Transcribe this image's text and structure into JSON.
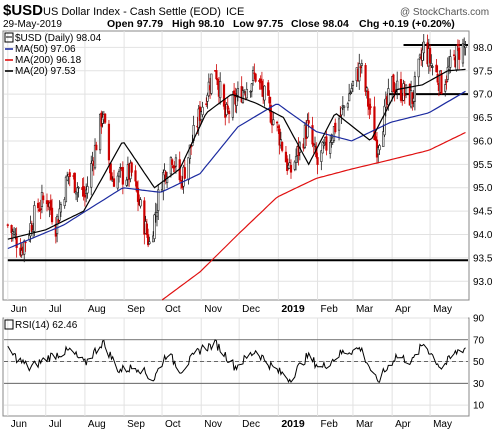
{
  "header": {
    "symbol": "$USD",
    "title": "US Dollar Index - Cash Settle (EOD)",
    "exchange": "ICE",
    "credit": "@ StockCharts.com",
    "date": "29-May-2019",
    "open": "Open 97.79",
    "high": "High 98.10",
    "low": "Low 97.75",
    "close": "Close 98.04",
    "chg": "Chg +0.19 (+0.20%)"
  },
  "legend": {
    "main": "$USD (Daily) 98.04",
    "ma50": "MA(50) 97.06",
    "ma200": "MA(200) 96.18",
    "ma20": "MA(20) 97.53",
    "rsi": "RSI(14) 62.46"
  },
  "colors": {
    "up": "#1a1a1a",
    "down": "#cc0000",
    "ma50": "#1c2ba0",
    "ma200": "#e01010",
    "ma20": "#000000",
    "grid": "#e2e2e2"
  },
  "chart_data": [
    {
      "type": "candlestick",
      "title": "$USD US Dollar Index - Cash Settle (EOD) ICE",
      "ylim": [
        92.6,
        98.35
      ],
      "y_ticks": [
        "98.0",
        "97.5",
        "97.0",
        "96.5",
        "96.0",
        "95.5",
        "95.0",
        "94.5",
        "94.0",
        "93.5",
        "93.0"
      ],
      "x_ticks": [
        "Jun",
        "Jul",
        "Aug",
        "Sep",
        "Oct",
        "Nov",
        "Dec",
        "2019",
        "Feb",
        "Mar",
        "Apr",
        "May"
      ],
      "close_anchors": [
        [
          "2018-06-01",
          94.2
        ],
        [
          "2018-06-12",
          93.7
        ],
        [
          "2018-06-25",
          94.6
        ],
        [
          "2018-07-02",
          94.8
        ],
        [
          "2018-07-09",
          94.2
        ],
        [
          "2018-07-19",
          95.3
        ],
        [
          "2018-08-01",
          94.8
        ],
        [
          "2018-08-15",
          96.6
        ],
        [
          "2018-08-22",
          95.2
        ],
        [
          "2018-09-07",
          95.3
        ],
        [
          "2018-09-21",
          93.8
        ],
        [
          "2018-10-01",
          95.2
        ],
        [
          "2018-10-09",
          95.7
        ],
        [
          "2018-10-16",
          95.1
        ],
        [
          "2018-11-01",
          96.7
        ],
        [
          "2018-11-12",
          97.6
        ],
        [
          "2018-11-20",
          96.5
        ],
        [
          "2018-12-01",
          97.0
        ],
        [
          "2018-12-14",
          97.4
        ],
        [
          "2019-01-01",
          96.2
        ],
        [
          "2019-01-10",
          95.3
        ],
        [
          "2019-01-24",
          96.3
        ],
        [
          "2019-02-01",
          95.5
        ],
        [
          "2019-02-20",
          96.6
        ],
        [
          "2019-03-07",
          97.6
        ],
        [
          "2019-03-20",
          95.9
        ],
        [
          "2019-04-01",
          97.2
        ],
        [
          "2019-04-17",
          96.9
        ],
        [
          "2019-04-26",
          98.0
        ],
        [
          "2019-05-10",
          97.2
        ],
        [
          "2019-05-23",
          97.9
        ],
        [
          "2019-05-29",
          98.04
        ]
      ],
      "overlays": [
        {
          "name": "MA(50) 97.06",
          "values": [
            [
              "2018-06-01",
              93.7
            ],
            [
              "2018-07-15",
              94.2
            ],
            [
              "2018-08-31",
              95.0
            ],
            [
              "2018-09-30",
              94.9
            ],
            [
              "2018-10-31",
              95.3
            ],
            [
              "2018-11-30",
              96.3
            ],
            [
              "2018-12-31",
              96.8
            ],
            [
              "2019-01-31",
              96.2
            ],
            [
              "2019-02-28",
              96.0
            ],
            [
              "2019-03-31",
              96.4
            ],
            [
              "2019-04-30",
              96.6
            ],
            [
              "2019-05-29",
              97.06
            ]
          ]
        },
        {
          "name": "MA(200) 96.18",
          "values": [
            [
              "2018-10-01",
              92.6
            ],
            [
              "2018-10-31",
              93.2
            ],
            [
              "2018-11-30",
              94.0
            ],
            [
              "2018-12-31",
              94.8
            ],
            [
              "2019-01-31",
              95.2
            ],
            [
              "2019-02-28",
              95.4
            ],
            [
              "2019-03-31",
              95.6
            ],
            [
              "2019-04-30",
              95.8
            ],
            [
              "2019-05-29",
              96.18
            ]
          ]
        },
        {
          "name": "MA(20) 97.53",
          "values": [
            [
              "2018-06-01",
              93.9
            ],
            [
              "2018-07-01",
              94.1
            ],
            [
              "2018-07-31",
              94.5
            ],
            [
              "2018-08-31",
              96.0
            ],
            [
              "2018-09-25",
              95.0
            ],
            [
              "2018-10-15",
              95.4
            ],
            [
              "2018-11-05",
              96.6
            ],
            [
              "2018-11-25",
              97.0
            ],
            [
              "2018-12-15",
              96.8
            ],
            [
              "2019-01-05",
              96.5
            ],
            [
              "2019-01-25",
              95.5
            ],
            [
              "2019-02-15",
              96.6
            ],
            [
              "2019-03-15",
              96.0
            ],
            [
              "2019-04-05",
              97.1
            ],
            [
              "2019-04-25",
              97.2
            ],
            [
              "2019-05-15",
              97.5
            ],
            [
              "2019-05-29",
              97.53
            ]
          ]
        }
      ],
      "horizontal_lines": [
        {
          "value": 93.45,
          "from": "2018-06-01",
          "to": "2019-05-31"
        },
        {
          "value": 97.0,
          "from": "2019-03-28",
          "to": "2019-05-31"
        },
        {
          "value": 98.05,
          "from": "2019-04-10",
          "to": "2019-05-31"
        }
      ]
    },
    {
      "type": "line",
      "title": "RSI(14) 62.46",
      "ylim": [
        0,
        90
      ],
      "y_ticks": [
        "90",
        "70",
        "50",
        "30",
        "10"
      ],
      "reference_lines": [
        70,
        50,
        30
      ],
      "x_ticks": [
        "Jun",
        "Jul",
        "Aug",
        "Sep",
        "Oct",
        "Nov",
        "Dec",
        "2019",
        "Feb",
        "Mar",
        "Apr",
        "May"
      ],
      "anchors": [
        [
          "2018-06-01",
          60
        ],
        [
          "2018-06-18",
          44
        ],
        [
          "2018-07-05",
          55
        ],
        [
          "2018-07-20",
          60
        ],
        [
          "2018-08-01",
          48
        ],
        [
          "2018-08-15",
          68
        ],
        [
          "2018-08-28",
          42
        ],
        [
          "2018-09-12",
          45
        ],
        [
          "2018-09-24",
          33
        ],
        [
          "2018-10-05",
          58
        ],
        [
          "2018-10-16",
          42
        ],
        [
          "2018-11-01",
          62
        ],
        [
          "2018-11-13",
          66
        ],
        [
          "2018-11-28",
          45
        ],
        [
          "2018-12-14",
          60
        ],
        [
          "2018-12-28",
          44
        ],
        [
          "2019-01-10",
          34
        ],
        [
          "2019-01-24",
          55
        ],
        [
          "2019-02-04",
          44
        ],
        [
          "2019-02-20",
          58
        ],
        [
          "2019-03-07",
          62
        ],
        [
          "2019-03-20",
          31
        ],
        [
          "2019-04-04",
          55
        ],
        [
          "2019-04-17",
          50
        ],
        [
          "2019-04-26",
          67
        ],
        [
          "2019-05-10",
          44
        ],
        [
          "2019-05-23",
          60
        ],
        [
          "2019-05-29",
          62.46
        ]
      ]
    }
  ]
}
